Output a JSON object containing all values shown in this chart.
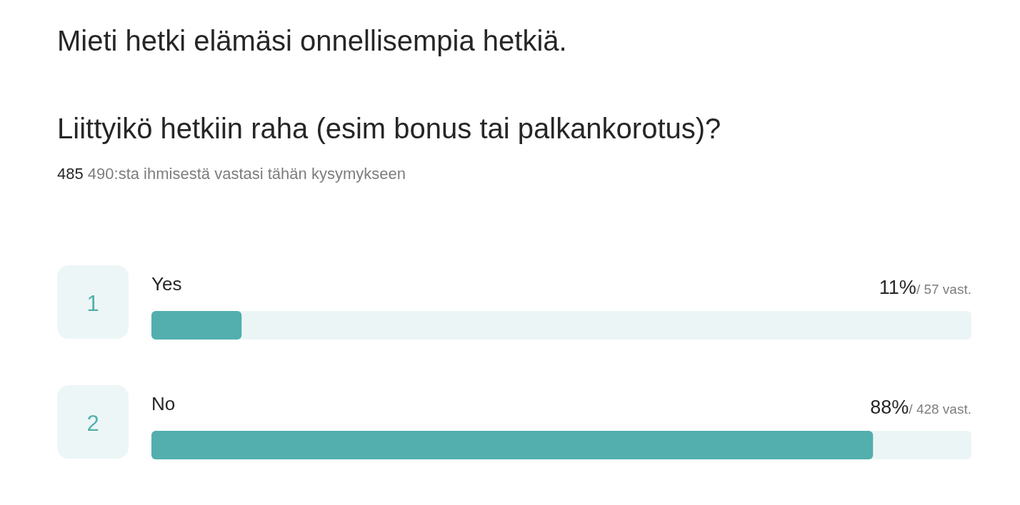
{
  "chart_data": {
    "type": "bar",
    "orientation": "horizontal",
    "title": "Mieti hetki elämäsi onnellisempia hetkiä.",
    "subtitle": "Liittyikö hetkiin raha (esim bonus tai palkankorotus)?",
    "annotations": [
      "485 490:sta ihmisestä vastasi tähän kysymykseen",
      "1",
      "2"
    ],
    "categories": [
      "Yes",
      "No"
    ],
    "values": [
      11,
      88
    ],
    "value_labels": [
      "11%/ 57 vast.",
      "88%/ 428 vast."
    ],
    "color": "#52afad",
    "xlim": [
      0,
      100
    ]
  }
}
